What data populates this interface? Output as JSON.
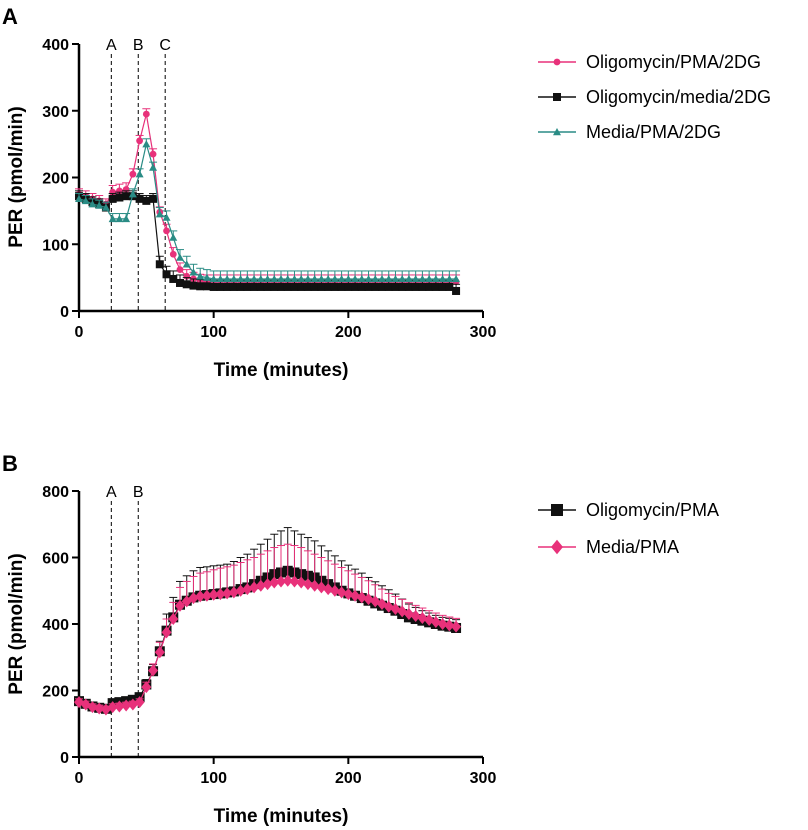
{
  "chart_data": [
    {
      "panel": "A",
      "type": "line",
      "xlabel": "Time (minutes)",
      "ylabel": "PER (pmol/min)",
      "xlim": [
        0,
        300
      ],
      "ylim": [
        0,
        400
      ],
      "xticks": [
        0,
        100,
        200,
        300
      ],
      "yticks": [
        0,
        100,
        200,
        300,
        400
      ],
      "grid": false,
      "legend_position": "right",
      "markers": [
        {
          "label": "A",
          "x": 24
        },
        {
          "label": "B",
          "x": 44
        },
        {
          "label": "C",
          "x": 64
        }
      ],
      "series": [
        {
          "name": "Oligomycin/PMA/2DG",
          "color": "#e8317a",
          "marker": "circle",
          "x": [
            0,
            5,
            10,
            15,
            20,
            25,
            30,
            35,
            40,
            45,
            50,
            55,
            60,
            65,
            70,
            75,
            80,
            85,
            90,
            95,
            100,
            105,
            110,
            115,
            120,
            125,
            130,
            135,
            140,
            145,
            150,
            155,
            160,
            165,
            170,
            175,
            180,
            185,
            190,
            195,
            200,
            205,
            210,
            215,
            220,
            225,
            230,
            235,
            240,
            245,
            250,
            255,
            260,
            265,
            270,
            275,
            280
          ],
          "y": [
            175,
            172,
            168,
            165,
            160,
            178,
            180,
            182,
            205,
            255,
            295,
            235,
            148,
            120,
            85,
            62,
            52,
            48,
            45,
            44,
            44,
            44,
            44,
            44,
            44,
            44,
            44,
            44,
            44,
            44,
            44,
            44,
            44,
            44,
            44,
            44,
            44,
            44,
            44,
            44,
            44,
            44,
            44,
            44,
            44,
            44,
            44,
            44,
            44,
            44,
            44,
            44,
            44,
            44,
            44,
            44,
            44
          ],
          "err": [
            8,
            8,
            8,
            8,
            8,
            10,
            10,
            10,
            8,
            8,
            8,
            8,
            8,
            10,
            10,
            10,
            10,
            10,
            10,
            10,
            10,
            10,
            10,
            10,
            10,
            10,
            10,
            10,
            10,
            10,
            10,
            10,
            10,
            10,
            10,
            10,
            10,
            10,
            10,
            10,
            10,
            10,
            10,
            10,
            10,
            10,
            10,
            10,
            10,
            10,
            10,
            10,
            10,
            10,
            10,
            10,
            10
          ]
        },
        {
          "name": "Oligomycin/media/2DG",
          "color": "#111111",
          "marker": "square",
          "x": [
            0,
            5,
            10,
            15,
            20,
            25,
            30,
            35,
            40,
            45,
            50,
            55,
            60,
            65,
            70,
            75,
            80,
            85,
            90,
            95,
            100,
            105,
            110,
            115,
            120,
            125,
            130,
            135,
            140,
            145,
            150,
            155,
            160,
            165,
            170,
            175,
            180,
            185,
            190,
            195,
            200,
            205,
            210,
            215,
            220,
            225,
            230,
            235,
            240,
            245,
            250,
            255,
            260,
            265,
            270,
            275,
            280
          ],
          "y": [
            172,
            168,
            163,
            160,
            155,
            168,
            170,
            172,
            172,
            168,
            165,
            168,
            70,
            55,
            48,
            42,
            40,
            38,
            37,
            37,
            36,
            36,
            36,
            36,
            36,
            36,
            36,
            36,
            36,
            36,
            36,
            36,
            36,
            36,
            36,
            36,
            36,
            36,
            36,
            36,
            36,
            36,
            36,
            36,
            36,
            36,
            36,
            36,
            36,
            36,
            36,
            36,
            36,
            36,
            36,
            36,
            30
          ],
          "err": [
            8,
            8,
            8,
            8,
            8,
            8,
            8,
            8,
            8,
            8,
            8,
            8,
            12,
            12,
            12,
            12,
            10,
            10,
            10,
            10,
            10,
            10,
            10,
            10,
            10,
            10,
            10,
            10,
            10,
            10,
            10,
            10,
            10,
            10,
            10,
            10,
            10,
            10,
            10,
            10,
            10,
            10,
            10,
            10,
            10,
            10,
            10,
            10,
            10,
            10,
            10,
            10,
            10,
            10,
            10,
            10,
            10
          ]
        },
        {
          "name": "Media/PMA/2DG",
          "color": "#2a8c85",
          "marker": "triangle",
          "x": [
            0,
            5,
            10,
            15,
            20,
            25,
            30,
            35,
            40,
            45,
            50,
            55,
            60,
            65,
            70,
            75,
            80,
            85,
            90,
            95,
            100,
            105,
            110,
            115,
            120,
            125,
            130,
            135,
            140,
            145,
            150,
            155,
            160,
            165,
            170,
            175,
            180,
            185,
            190,
            195,
            200,
            205,
            210,
            215,
            220,
            225,
            230,
            235,
            240,
            245,
            250,
            255,
            260,
            265,
            270,
            275,
            280
          ],
          "y": [
            168,
            165,
            160,
            158,
            155,
            138,
            138,
            138,
            175,
            205,
            250,
            215,
            145,
            140,
            110,
            80,
            70,
            58,
            52,
            50,
            48,
            48,
            48,
            48,
            48,
            48,
            48,
            48,
            48,
            48,
            48,
            48,
            48,
            48,
            48,
            48,
            48,
            48,
            48,
            48,
            48,
            48,
            48,
            48,
            48,
            48,
            48,
            48,
            48,
            48,
            48,
            48,
            48,
            48,
            48,
            48,
            48
          ],
          "err": [
            8,
            8,
            8,
            8,
            8,
            8,
            8,
            8,
            8,
            8,
            8,
            8,
            10,
            10,
            10,
            12,
            12,
            12,
            12,
            12,
            12,
            12,
            12,
            12,
            12,
            12,
            12,
            12,
            12,
            12,
            12,
            12,
            12,
            12,
            12,
            12,
            12,
            12,
            12,
            12,
            12,
            12,
            12,
            12,
            12,
            12,
            12,
            12,
            12,
            12,
            12,
            12,
            12,
            12,
            12,
            12,
            12
          ]
        }
      ]
    },
    {
      "panel": "B",
      "type": "line",
      "xlabel": "Time (minutes)",
      "ylabel": "PER (pmol/min)",
      "xlim": [
        0,
        300
      ],
      "ylim": [
        0,
        800
      ],
      "xticks": [
        0,
        100,
        200,
        300
      ],
      "yticks": [
        0,
        200,
        400,
        600,
        800
      ],
      "grid": false,
      "legend_position": "right",
      "markers": [
        {
          "label": "A",
          "x": 24
        },
        {
          "label": "B",
          "x": 44
        }
      ],
      "series": [
        {
          "name": "Oligomycin/PMA",
          "color": "#111111",
          "marker": "square",
          "x": [
            0,
            5,
            10,
            15,
            20,
            25,
            30,
            35,
            40,
            45,
            50,
            55,
            60,
            65,
            70,
            75,
            80,
            85,
            90,
            95,
            100,
            105,
            110,
            115,
            120,
            125,
            130,
            135,
            140,
            145,
            150,
            155,
            160,
            165,
            170,
            175,
            180,
            185,
            190,
            195,
            200,
            205,
            210,
            215,
            220,
            225,
            230,
            235,
            240,
            245,
            250,
            255,
            260,
            265,
            270,
            275,
            280
          ],
          "y": [
            168,
            160,
            152,
            148,
            145,
            162,
            165,
            168,
            172,
            180,
            218,
            258,
            318,
            380,
            420,
            458,
            470,
            480,
            485,
            487,
            490,
            492,
            495,
            498,
            505,
            510,
            520,
            530,
            540,
            550,
            555,
            560,
            555,
            550,
            545,
            540,
            530,
            520,
            510,
            500,
            492,
            485,
            478,
            470,
            462,
            455,
            448,
            440,
            430,
            420,
            415,
            410,
            405,
            400,
            395,
            392,
            388
          ],
          "err": [
            10,
            10,
            10,
            10,
            10,
            10,
            10,
            10,
            10,
            10,
            15,
            20,
            30,
            50,
            60,
            70,
            75,
            80,
            85,
            85,
            85,
            85,
            85,
            90,
            95,
            100,
            105,
            110,
            115,
            120,
            125,
            130,
            125,
            120,
            115,
            110,
            105,
            100,
            95,
            90,
            85,
            80,
            75,
            70,
            65,
            60,
            55,
            50,
            45,
            40,
            35,
            30,
            28,
            26,
            25,
            25,
            25
          ]
        },
        {
          "name": "Media/PMA",
          "color": "#e8317a",
          "marker": "diamond",
          "x": [
            0,
            5,
            10,
            15,
            20,
            25,
            30,
            35,
            40,
            45,
            50,
            55,
            60,
            65,
            70,
            75,
            80,
            85,
            90,
            95,
            100,
            105,
            110,
            115,
            120,
            125,
            130,
            135,
            140,
            145,
            150,
            155,
            160,
            165,
            170,
            175,
            180,
            185,
            190,
            195,
            200,
            205,
            210,
            215,
            220,
            225,
            230,
            235,
            240,
            245,
            250,
            255,
            260,
            265,
            270,
            275,
            280
          ],
          "y": [
            165,
            158,
            150,
            146,
            143,
            150,
            152,
            155,
            158,
            165,
            210,
            260,
            315,
            375,
            415,
            455,
            468,
            478,
            483,
            485,
            488,
            490,
            492,
            495,
            500,
            505,
            510,
            515,
            520,
            525,
            528,
            530,
            528,
            525,
            520,
            515,
            510,
            505,
            500,
            495,
            490,
            485,
            480,
            475,
            468,
            460,
            452,
            445,
            438,
            430,
            424,
            418,
            412,
            406,
            400,
            396,
            392
          ],
          "err": [
            10,
            10,
            10,
            10,
            10,
            10,
            10,
            10,
            10,
            10,
            15,
            20,
            30,
            40,
            50,
            55,
            60,
            65,
            70,
            72,
            75,
            78,
            80,
            82,
            85,
            88,
            90,
            95,
            100,
            105,
            108,
            110,
            108,
            105,
            100,
            95,
            90,
            85,
            80,
            75,
            70,
            65,
            60,
            55,
            50,
            45,
            40,
            38,
            36,
            34,
            32,
            30,
            28,
            27,
            26,
            25,
            25
          ]
        }
      ]
    }
  ]
}
